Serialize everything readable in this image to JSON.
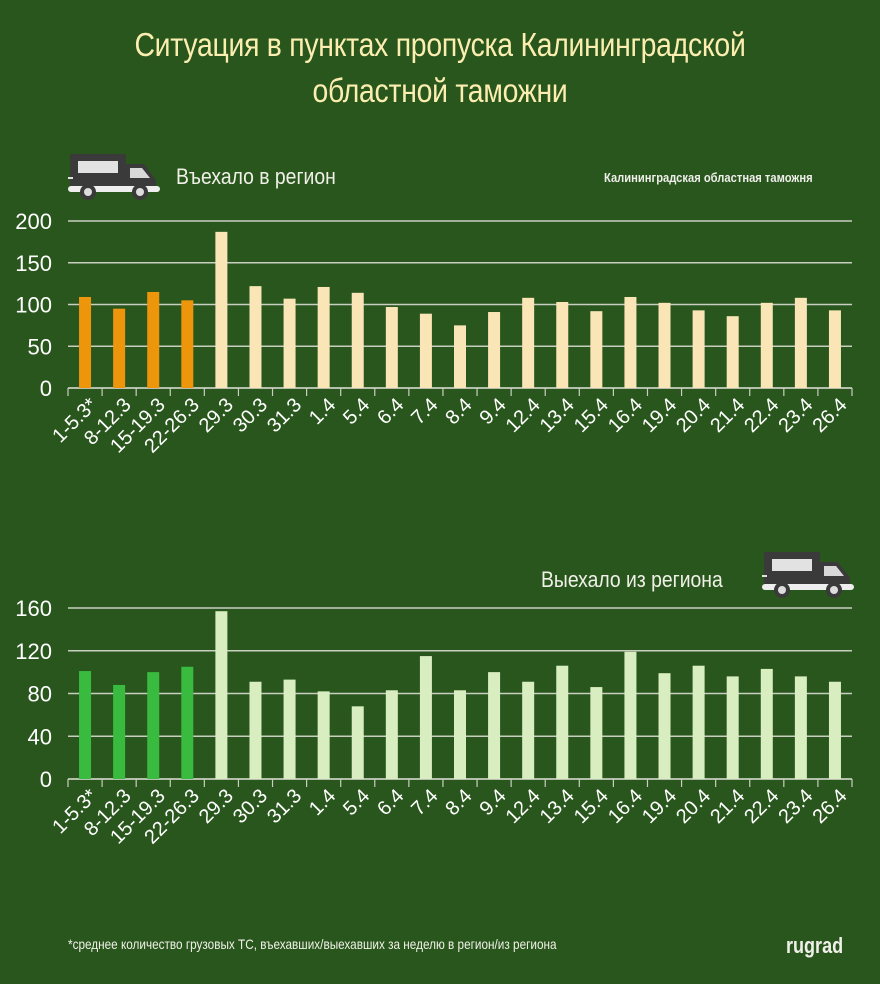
{
  "header": {
    "title_line1": "Ситуация в пунктах пропуска Калининградской",
    "title_line2": "областной таможни"
  },
  "source_label": "Калининградская областная таможня",
  "footnote": "*среднее количество грузовых ТС, въехавших/выехавших за неделю в регион/из региона",
  "brand": "rugrad",
  "icons": {
    "truck_top": "truck-icon",
    "truck_bottom": "truck-icon"
  },
  "colors": {
    "background": "#29561c",
    "title": "#fbeeb0",
    "in_weekly": "#ee960b",
    "in_daily": "#fae5b6",
    "out_weekly": "#38bb3e",
    "out_daily": "#d9eec0",
    "grid": "#c8cfc0",
    "text": "#ffffff"
  },
  "chart_data": [
    {
      "type": "bar",
      "title": "Въехало в регион",
      "xlabel": "",
      "ylabel": "",
      "ylim": [
        0,
        200
      ],
      "yticks": [
        0,
        50,
        100,
        150,
        200
      ],
      "grid": true,
      "categories": [
        "1-5.3*",
        "8-12.3",
        "15-19.3",
        "22-26.3",
        "29.3",
        "30.3",
        "31.3",
        "1.4",
        "5.4",
        "6.4",
        "7.4",
        "8.4",
        "9.4",
        "12.4",
        "13.4",
        "15.4",
        "16.4",
        "19.4",
        "20.4",
        "21.4",
        "22.4",
        "23.4",
        "26.4"
      ],
      "values": [
        109,
        95,
        115,
        105,
        187,
        122,
        107,
        121,
        114,
        97,
        89,
        75,
        91,
        108,
        103,
        92,
        109,
        102,
        93,
        86,
        102,
        108,
        93
      ],
      "highlight_count": 4
    },
    {
      "type": "bar",
      "title": "Выехало из региона",
      "xlabel": "",
      "ylabel": "",
      "ylim": [
        0,
        160
      ],
      "yticks": [
        0,
        40,
        80,
        120,
        160
      ],
      "grid": true,
      "categories": [
        "1-5.3*",
        "8-12.3",
        "15-19.3",
        "22-26.3",
        "29.3",
        "30.3",
        "31.3",
        "1.4",
        "5.4",
        "6.4",
        "7.4",
        "8.4",
        "9.4",
        "12.4",
        "13.4",
        "15.4",
        "16.4",
        "19.4",
        "20.4",
        "21.4",
        "22.4",
        "23.4",
        "26.4"
      ],
      "values": [
        101,
        88,
        100,
        105,
        157,
        91,
        93,
        82,
        68,
        83,
        115,
        83,
        100,
        91,
        106,
        86,
        119,
        99,
        106,
        96,
        103,
        96,
        91
      ],
      "highlight_count": 4
    }
  ]
}
